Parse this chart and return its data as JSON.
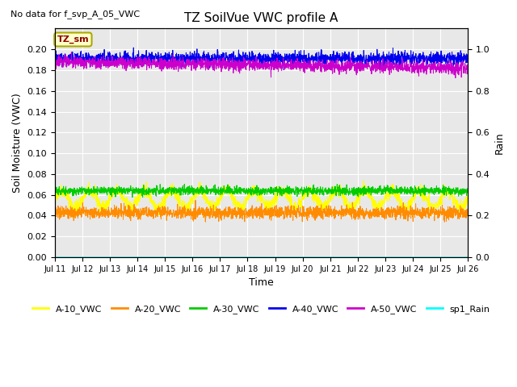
{
  "title": "TZ SoilVue VWC profile A",
  "subtitle": "No data for f_svp_A_05_VWC",
  "xlabel": "Time",
  "ylabel_left": "Soil Moisture (VWC)",
  "ylabel_right": "Rain",
  "annotation": "TZ_sm",
  "ylim_left": [
    0.0,
    0.22
  ],
  "ylim_right": [
    0.0,
    1.1
  ],
  "yticks_left": [
    0.0,
    0.02,
    0.04,
    0.06,
    0.08,
    0.1,
    0.12,
    0.14,
    0.16,
    0.18,
    0.2
  ],
  "yticks_right": [
    0.0,
    0.2,
    0.4,
    0.6,
    0.8,
    1.0
  ],
  "xtick_labels": [
    "Jul 11",
    "Jul 12",
    "Jul 13",
    "Jul 14",
    "Jul 15",
    "Jul 16",
    "Jul 17",
    "Jul 18",
    "Jul 19",
    "Jul 20",
    "Jul 21",
    "Jul 22",
    "Jul 23",
    "Jul 24",
    "Jul 25",
    "Jul 26"
  ],
  "n_days": 15,
  "n_points": 2160,
  "background_color": "#e8e8e8",
  "grid_color": "#ffffff",
  "series": {
    "A-10_VWC": {
      "mean": 0.056,
      "noise_small": 0.003,
      "noise_large": 0.008,
      "period": 1.0,
      "drift": 0.0,
      "color": "#ffff00",
      "lw": 0.7
    },
    "A-20_VWC": {
      "mean": 0.043,
      "noise_small": 0.003,
      "noise_large": 0.0,
      "period": 0.0,
      "drift": 0.0,
      "color": "#ff8c00",
      "lw": 0.7
    },
    "A-30_VWC": {
      "mean": 0.064,
      "noise_small": 0.002,
      "noise_large": 0.0,
      "period": 0.0,
      "drift": 0.0,
      "color": "#00cc00",
      "lw": 0.7
    },
    "A-40_VWC": {
      "mean": 0.191,
      "noise_small": 0.003,
      "noise_large": 0.0,
      "period": 0.0,
      "drift": 0.0,
      "color": "#0000ee",
      "lw": 0.7
    },
    "A-50_VWC": {
      "mean": 0.188,
      "noise_small": 0.003,
      "noise_large": 0.0,
      "period": 0.0,
      "drift": -0.006,
      "color": "#cc00cc",
      "lw": 0.7
    },
    "sp1_Rain": {
      "mean": 0.0,
      "noise_small": 0.0,
      "noise_large": 0.0,
      "period": 0.0,
      "drift": 0.0,
      "color": "#00ffff",
      "lw": 0.8
    }
  },
  "legend": {
    "A-10_VWC": "#ffff00",
    "A-20_VWC": "#ff8c00",
    "A-30_VWC": "#00cc00",
    "A-40_VWC": "#0000ee",
    "A-50_VWC": "#cc00cc",
    "sp1_Rain": "#00ffff"
  }
}
